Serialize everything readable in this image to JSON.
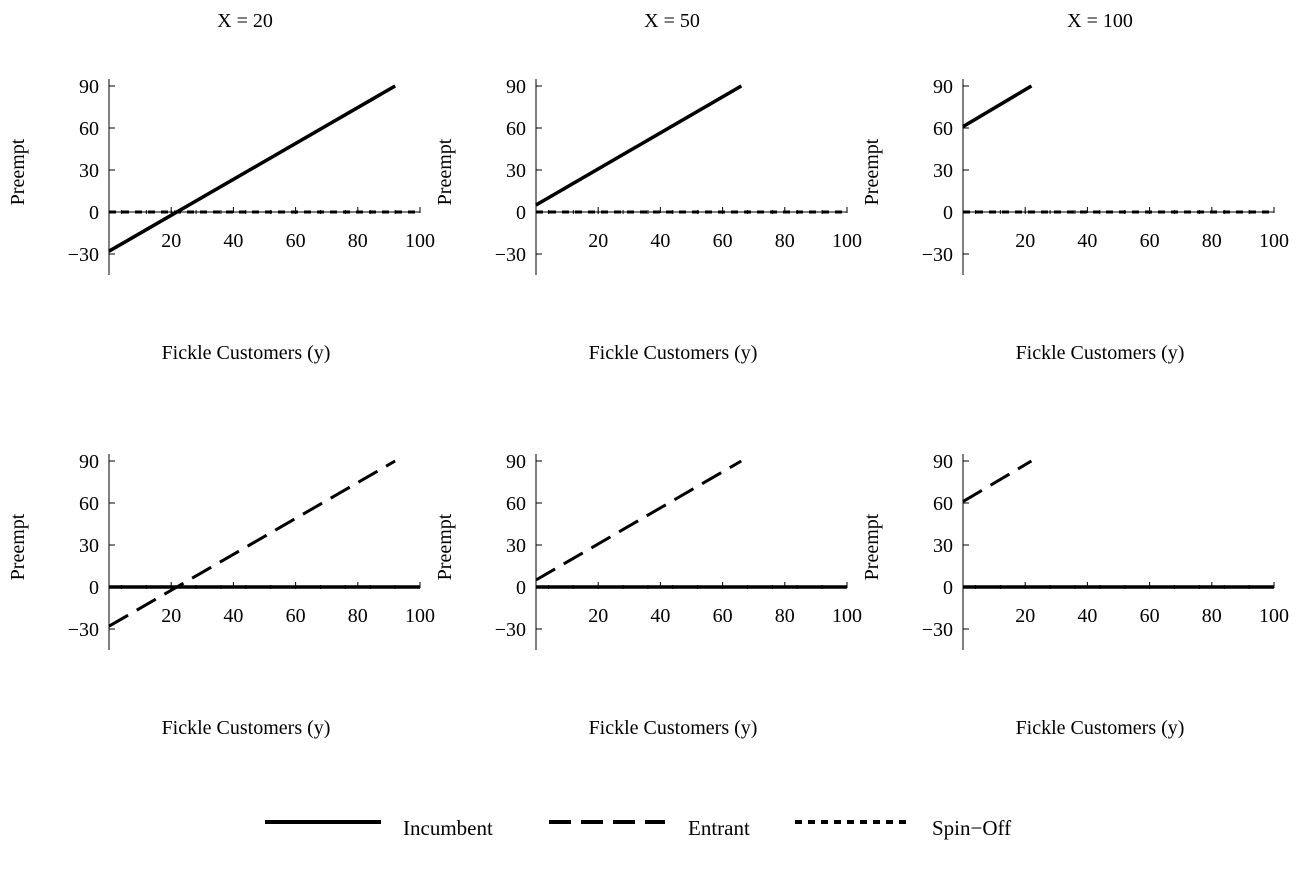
{
  "figure": {
    "column_titles": [
      "X = 20",
      "X = 50",
      "X = 100"
    ],
    "legend": [
      {
        "label": "Incumbent",
        "style": "solid"
      },
      {
        "label": "Entrant",
        "style": "dashed"
      },
      {
        "label": "Spin−Off",
        "style": "dotted"
      }
    ]
  },
  "chart_data": [
    {
      "type": "line",
      "title": "X = 20",
      "xlabel": "Fickle Customers (y)",
      "ylabel": "Preempt",
      "xlim": [
        0,
        100
      ],
      "ylim": [
        -45,
        95
      ],
      "xticks": [
        20,
        40,
        60,
        80,
        100
      ],
      "yticks": [
        -30,
        0,
        30,
        60,
        90
      ],
      "series": [
        {
          "name": "Incumbent",
          "style": "solid",
          "x": [
            0,
            92
          ],
          "y": [
            -28,
            90
          ]
        },
        {
          "name": "Entrant",
          "style": "dashed",
          "x": [
            0,
            92
          ],
          "y": [
            -28,
            90
          ]
        },
        {
          "name": "Spin−Off",
          "style": "dotted",
          "x": [
            0,
            100
          ],
          "y": [
            0,
            0
          ]
        }
      ]
    },
    {
      "type": "line",
      "title": "X = 50",
      "xlabel": "Fickle Customers (y)",
      "ylabel": "Preempt",
      "xlim": [
        0,
        100
      ],
      "ylim": [
        -45,
        95
      ],
      "xticks": [
        20,
        40,
        60,
        80,
        100
      ],
      "yticks": [
        -30,
        0,
        30,
        60,
        90
      ],
      "series": [
        {
          "name": "Incumbent",
          "style": "solid",
          "x": [
            0,
            66
          ],
          "y": [
            5,
            90
          ]
        },
        {
          "name": "Entrant",
          "style": "dashed",
          "x": [
            0,
            66
          ],
          "y": [
            5,
            90
          ]
        },
        {
          "name": "Spin−Off",
          "style": "dotted",
          "x": [
            0,
            100
          ],
          "y": [
            0,
            0
          ]
        }
      ]
    },
    {
      "type": "line",
      "title": "X = 100",
      "xlabel": "Fickle Customers (y)",
      "ylabel": "Preempt",
      "xlim": [
        0,
        100
      ],
      "ylim": [
        -45,
        95
      ],
      "xticks": [
        20,
        40,
        60,
        80,
        100
      ],
      "yticks": [
        -30,
        0,
        30,
        60,
        90
      ],
      "series": [
        {
          "name": "Incumbent",
          "style": "solid",
          "x": [
            0,
            22
          ],
          "y": [
            61,
            90
          ]
        },
        {
          "name": "Entrant",
          "style": "dashed",
          "x": [
            0,
            22
          ],
          "y": [
            61,
            90
          ]
        },
        {
          "name": "Spin−Off",
          "style": "dotted",
          "x": [
            0,
            100
          ],
          "y": [
            0,
            0
          ]
        }
      ]
    },
    {
      "type": "line",
      "title": "",
      "xlabel": "Fickle Customers (y)",
      "ylabel": "Preempt",
      "xlim": [
        0,
        100
      ],
      "ylim": [
        -45,
        95
      ],
      "xticks": [
        20,
        40,
        60,
        80,
        100
      ],
      "yticks": [
        -30,
        0,
        30,
        60,
        90
      ],
      "series": [
        {
          "name": "Incumbent",
          "style": "solid",
          "x": [
            0,
            100
          ],
          "y": [
            0,
            0
          ]
        },
        {
          "name": "Entrant",
          "style": "dashed",
          "x": [
            0,
            92
          ],
          "y": [
            -28,
            90
          ]
        }
      ]
    },
    {
      "type": "line",
      "title": "",
      "xlabel": "Fickle Customers (y)",
      "ylabel": "Preempt",
      "xlim": [
        0,
        100
      ],
      "ylim": [
        -45,
        95
      ],
      "xticks": [
        20,
        40,
        60,
        80,
        100
      ],
      "yticks": [
        -30,
        0,
        30,
        60,
        90
      ],
      "series": [
        {
          "name": "Incumbent",
          "style": "solid",
          "x": [
            0,
            100
          ],
          "y": [
            0,
            0
          ]
        },
        {
          "name": "Entrant",
          "style": "dashed",
          "x": [
            0,
            66
          ],
          "y": [
            5,
            90
          ]
        }
      ]
    },
    {
      "type": "line",
      "title": "",
      "xlabel": "Fickle Customers (y)",
      "ylabel": "Preempt",
      "xlim": [
        0,
        100
      ],
      "ylim": [
        -45,
        95
      ],
      "xticks": [
        20,
        40,
        60,
        80,
        100
      ],
      "yticks": [
        -30,
        0,
        30,
        60,
        90
      ],
      "series": [
        {
          "name": "Incumbent",
          "style": "solid",
          "x": [
            0,
            100
          ],
          "y": [
            0,
            0
          ]
        },
        {
          "name": "Entrant",
          "style": "dashed",
          "x": [
            0,
            22
          ],
          "y": [
            61,
            90
          ]
        }
      ]
    }
  ]
}
